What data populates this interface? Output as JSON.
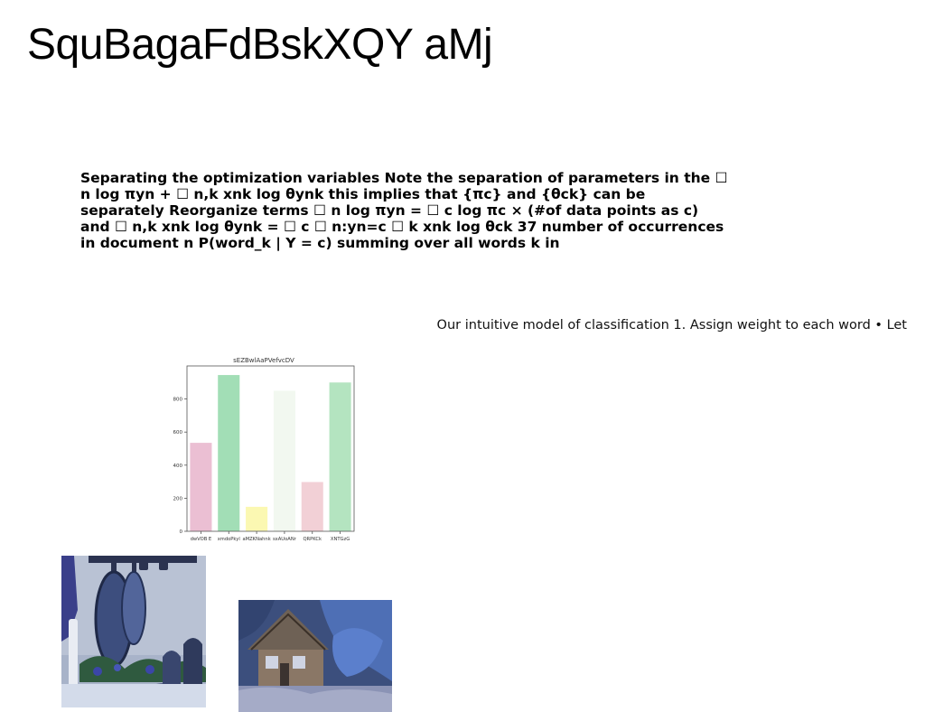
{
  "page": {
    "title": "SquBagaFdBskXQY aMj",
    "paragraph": "Separating the optimization variables Note the separation of parameters in the ☐ n log πyn + ☐ n,k xnk log θynk this implies that {πc} and {θck} can be separately Reorganize terms ☐ n log πyn = ☐ c log πc × (#of data points as c) and ☐ n,k xnk log θynk = ☐ c ☐ n:yn=c ☐ k xnk log θck 37 number of occurrences in document n P(word_k | Y = c) summing over all words k in",
    "side_note": "Our intuitive model of classification 1. Assign weight to each word • Let"
  },
  "chart_data": {
    "type": "bar",
    "title": "sEZBwlAaPVefvcDV",
    "categories": [
      "dwVOB E",
      "xmdoPkyl",
      "aMZKNahnk",
      "sxAUoANr",
      "QRPKCk",
      "XNTGzG"
    ],
    "values": [
      535,
      945,
      148,
      850,
      298,
      900
    ],
    "colors": [
      "#ebbfd3",
      "#a2deb6",
      "#fbf8b2",
      "#f2f8f0",
      "#f2d0d6",
      "#b4e4c0"
    ],
    "ylim": [
      0,
      1000
    ],
    "yticks": [
      0,
      200,
      400,
      600,
      800
    ],
    "xlabel": "",
    "ylabel": "",
    "grid": false,
    "legend": "none"
  },
  "images": {
    "kitchen_photo": "kitchen-pans-photo",
    "house_photo": "wooden-house-photo"
  }
}
